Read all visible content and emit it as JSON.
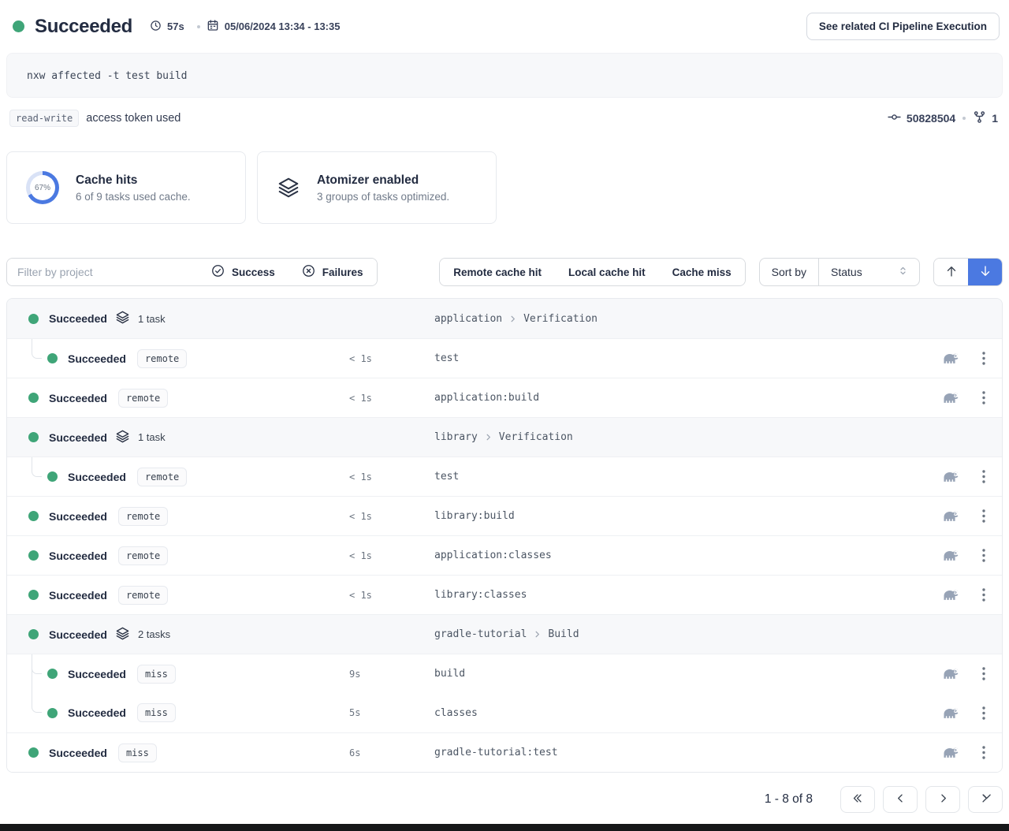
{
  "colors": {
    "success_green": "#3fa578",
    "accent_blue": "#4b79e1",
    "ring_track": "#d9e2f6"
  },
  "header": {
    "status": "Succeeded",
    "duration": "57s",
    "date_range": "05/06/2024 13:34 - 13:35",
    "cta_label": "See related CI Pipeline Execution"
  },
  "command": "nxw affected -t test build",
  "token": {
    "scope_badge": "read-write",
    "text": "access token used",
    "commit": "50828504",
    "branch_count": "1"
  },
  "cards": [
    {
      "percent": "67%",
      "percent_value": 67,
      "title": "Cache hits",
      "subtitle": "6 of 9 tasks used cache."
    },
    {
      "title": "Atomizer enabled",
      "subtitle": "3 groups of tasks optimized."
    }
  ],
  "filters": {
    "search_placeholder": "Filter by project",
    "success_label": "Success",
    "failures_label": "Failures",
    "cache_buttons": [
      "Remote cache hit",
      "Local cache hit",
      "Cache miss"
    ],
    "sort_label": "Sort by",
    "sort_value": "Status"
  },
  "icons": [
    "clock-icon",
    "calendar-icon",
    "commit-icon",
    "branch-icon",
    "layers-icon",
    "check-circle-icon",
    "x-circle-icon",
    "select-chevrons-icon",
    "arrow-up-icon",
    "arrow-down-icon",
    "gradle-elephant-icon",
    "kebab-menu-icon",
    "chevron-right-icon",
    "double-chevron-left-icon",
    "chevron-left-icon",
    "chevron-right-page-icon",
    "double-chevron-right-icon"
  ],
  "rows": [
    {
      "kind": "group",
      "status": "Succeeded",
      "task_count": "1 task",
      "project": "application",
      "target_group": "Verification"
    },
    {
      "kind": "task",
      "indent": true,
      "status": "Succeeded",
      "cache": "remote",
      "duration": "< 1s",
      "target": "test"
    },
    {
      "kind": "task",
      "status": "Succeeded",
      "cache": "remote",
      "duration": "< 1s",
      "target": "application:build"
    },
    {
      "kind": "group",
      "status": "Succeeded",
      "task_count": "1 task",
      "project": "library",
      "target_group": "Verification"
    },
    {
      "kind": "task",
      "indent": true,
      "status": "Succeeded",
      "cache": "remote",
      "duration": "< 1s",
      "target": "test"
    },
    {
      "kind": "task",
      "status": "Succeeded",
      "cache": "remote",
      "duration": "< 1s",
      "target": "library:build"
    },
    {
      "kind": "task",
      "status": "Succeeded",
      "cache": "remote",
      "duration": "< 1s",
      "target": "application:classes"
    },
    {
      "kind": "task",
      "status": "Succeeded",
      "cache": "remote",
      "duration": "< 1s",
      "target": "library:classes"
    },
    {
      "kind": "group",
      "status": "Succeeded",
      "task_count": "2 tasks",
      "project": "gradle-tutorial",
      "target_group": "Build"
    },
    {
      "kind": "task",
      "indent": true,
      "continues": true,
      "status": "Succeeded",
      "cache": "miss",
      "duration": "9s",
      "target": "build"
    },
    {
      "kind": "task",
      "indent": true,
      "no_separator": true,
      "status": "Succeeded",
      "cache": "miss",
      "duration": "5s",
      "target": "classes"
    },
    {
      "kind": "task",
      "status": "Succeeded",
      "cache": "miss",
      "duration": "6s",
      "target": "gradle-tutorial:test"
    }
  ],
  "pagination": {
    "label": "1 - 8 of 8"
  }
}
